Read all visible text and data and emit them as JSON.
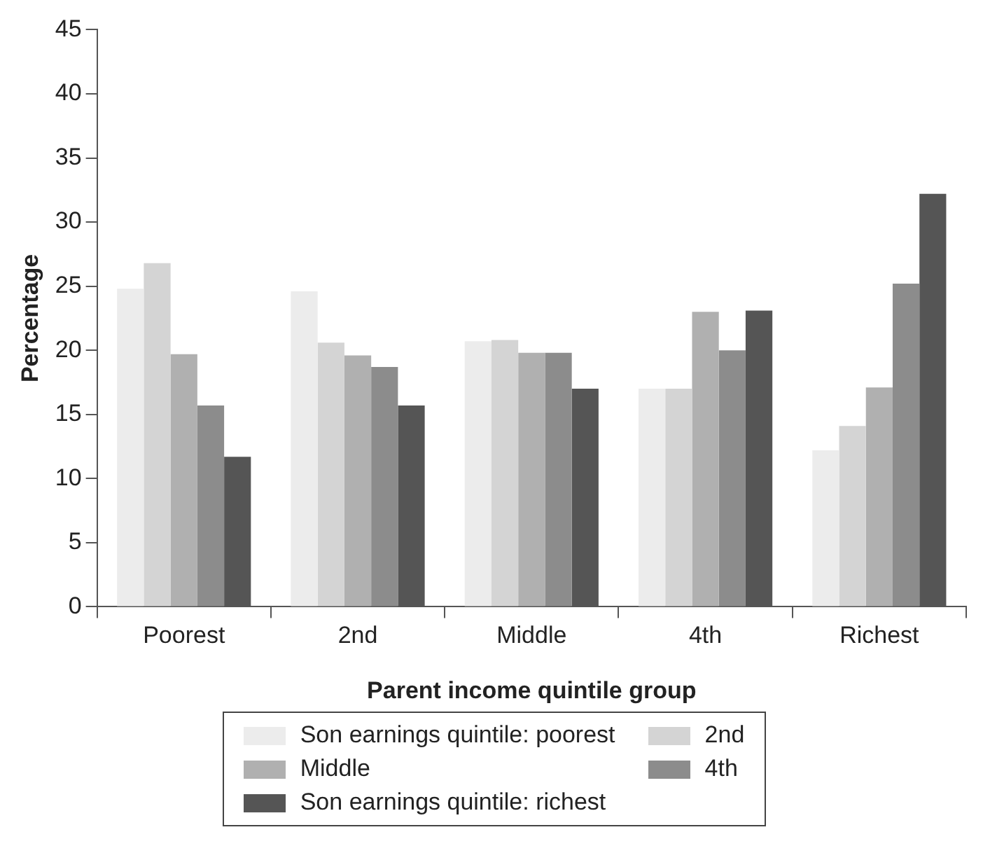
{
  "chart_data": {
    "type": "bar",
    "xlabel": "Parent income quintile group",
    "ylabel": "Percentage",
    "categories": [
      "Poorest",
      "2nd",
      "Middle",
      "4th",
      "Richest"
    ],
    "series": [
      {
        "name": "Son earnings quintile: poorest",
        "color": "#ececec",
        "values": [
          24.8,
          24.6,
          20.7,
          17.0,
          12.2
        ]
      },
      {
        "name": "2nd",
        "color": "#d4d4d4",
        "values": [
          26.8,
          20.6,
          20.8,
          17.0,
          14.1
        ]
      },
      {
        "name": "Middle",
        "color": "#b0b0b0",
        "values": [
          19.7,
          19.6,
          19.8,
          23.0,
          17.1
        ]
      },
      {
        "name": "4th",
        "color": "#8c8c8c",
        "values": [
          15.7,
          18.7,
          19.8,
          20.0,
          25.2
        ]
      },
      {
        "name": "Son earnings quintile: richest",
        "color": "#555555",
        "values": [
          11.7,
          15.7,
          17.0,
          23.1,
          32.2
        ]
      }
    ],
    "ylim": [
      0,
      45
    ],
    "yticks": [
      0,
      5,
      10,
      15,
      20,
      25,
      30,
      35,
      40,
      45
    ],
    "grid": false,
    "legend": "bottom"
  }
}
